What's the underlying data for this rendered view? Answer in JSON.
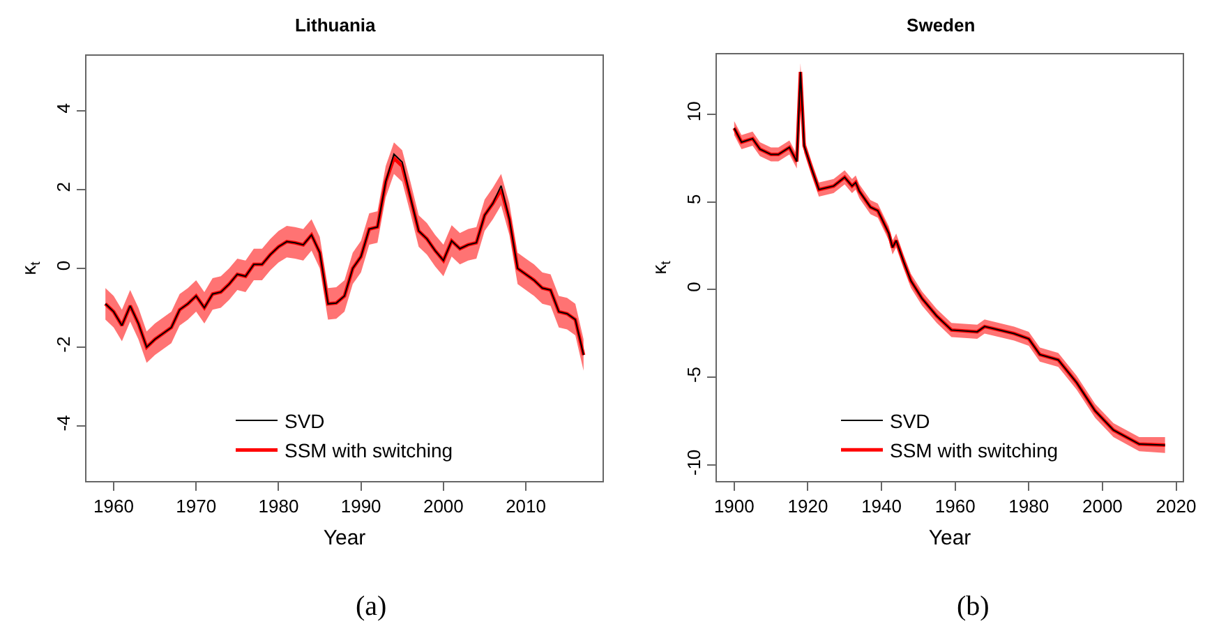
{
  "chart_data": [
    {
      "type": "line",
      "title": "Lithuania",
      "xlabel": "Year",
      "ylabel": "κ$_{t}$",
      "legend": "bottom",
      "grid": false,
      "annotations": [
        "(a)"
      ],
      "xlim": [
        1956.7,
        2019.3
      ],
      "xticks": [
        1960,
        1970,
        1980,
        1990,
        2000,
        2010
      ],
      "ylim": [
        -5.4,
        5.4
      ],
      "yticks": [
        -4,
        -2,
        0,
        2,
        4
      ],
      "x": [
        1959,
        1960,
        1961,
        1962,
        1963,
        1964,
        1965,
        1966,
        1967,
        1968,
        1969,
        1970,
        1971,
        1972,
        1973,
        1974,
        1975,
        1976,
        1977,
        1978,
        1979,
        1980,
        1981,
        1982,
        1983,
        1984,
        1985,
        1986,
        1987,
        1988,
        1989,
        1990,
        1991,
        1992,
        1993,
        1994,
        1995,
        1996,
        1997,
        1998,
        1999,
        2000,
        2001,
        2002,
        2003,
        2004,
        2005,
        2006,
        2007,
        2008,
        2009,
        2010,
        2011,
        2012,
        2013,
        2014,
        2015,
        2016,
        2017
      ],
      "series": [
        {
          "name": "SSM with switching",
          "color": "#ff0000",
          "values": [
            -0.9,
            -1.1,
            -1.45,
            -0.95,
            -1.4,
            -2.0,
            -1.8,
            -1.65,
            -1.5,
            -1.05,
            -0.9,
            -0.7,
            -1.0,
            -0.65,
            -0.6,
            -0.4,
            -0.15,
            -0.2,
            0.1,
            0.1,
            0.35,
            0.55,
            0.68,
            0.65,
            0.6,
            0.85,
            0.4,
            -0.9,
            -0.88,
            -0.7,
            0.0,
            0.3,
            1.0,
            1.05,
            2.2,
            2.8,
            2.6,
            1.8,
            0.95,
            0.75,
            0.45,
            0.2,
            0.7,
            0.5,
            0.6,
            0.65,
            1.35,
            1.65,
            2.0,
            1.25,
            0.0,
            -0.15,
            -0.3,
            -0.5,
            -0.55,
            -1.1,
            -1.15,
            -1.3,
            -2.2
          ],
          "lower": [
            -1.3,
            -1.5,
            -1.85,
            -1.35,
            -1.8,
            -2.4,
            -2.2,
            -2.05,
            -1.9,
            -1.45,
            -1.3,
            -1.1,
            -1.4,
            -1.05,
            -1.0,
            -0.8,
            -0.55,
            -0.6,
            -0.3,
            -0.3,
            -0.05,
            0.15,
            0.28,
            0.25,
            0.2,
            0.45,
            0.0,
            -1.3,
            -1.28,
            -1.1,
            -0.4,
            -0.1,
            0.6,
            0.65,
            1.8,
            2.4,
            2.2,
            1.4,
            0.55,
            0.35,
            0.05,
            -0.2,
            0.3,
            0.1,
            0.2,
            0.25,
            0.95,
            1.25,
            1.6,
            0.85,
            -0.4,
            -0.55,
            -0.7,
            -0.9,
            -0.95,
            -1.5,
            -1.55,
            -1.7,
            -2.6
          ],
          "upper": [
            -0.5,
            -0.7,
            -1.05,
            -0.55,
            -1.0,
            -1.6,
            -1.4,
            -1.25,
            -1.1,
            -0.65,
            -0.5,
            -0.3,
            -0.6,
            -0.25,
            -0.2,
            0.0,
            0.25,
            0.2,
            0.5,
            0.5,
            0.75,
            0.95,
            1.08,
            1.05,
            1.0,
            1.25,
            0.8,
            -0.5,
            -0.48,
            -0.3,
            0.4,
            0.7,
            1.4,
            1.45,
            2.6,
            3.2,
            3.0,
            2.2,
            1.35,
            1.15,
            0.85,
            0.6,
            1.1,
            0.9,
            1.0,
            1.05,
            1.75,
            2.05,
            2.4,
            1.65,
            0.4,
            0.25,
            0.1,
            -0.1,
            -0.15,
            -0.7,
            -0.75,
            -0.9,
            -1.8
          ]
        },
        {
          "name": "SVD",
          "color": "#000000",
          "values": [
            -0.9,
            -1.1,
            -1.45,
            -0.95,
            -1.4,
            -2.0,
            -1.8,
            -1.65,
            -1.5,
            -1.05,
            -0.9,
            -0.7,
            -1.0,
            -0.65,
            -0.6,
            -0.4,
            -0.15,
            -0.2,
            0.1,
            0.1,
            0.35,
            0.55,
            0.68,
            0.65,
            0.6,
            0.85,
            0.4,
            -0.9,
            -0.88,
            -0.7,
            0.0,
            0.3,
            1.0,
            1.05,
            2.2,
            2.9,
            2.7,
            1.8,
            0.95,
            0.75,
            0.45,
            0.2,
            0.7,
            0.5,
            0.6,
            0.65,
            1.35,
            1.65,
            2.1,
            1.25,
            0.0,
            -0.15,
            -0.3,
            -0.5,
            -0.55,
            -1.1,
            -1.15,
            -1.3,
            -2.2
          ]
        }
      ]
    },
    {
      "type": "line",
      "title": "Sweden",
      "xlabel": "Year",
      "ylabel": "κ$_{t}$",
      "legend": "bottom",
      "grid": false,
      "annotations": [
        "(b)"
      ],
      "xlim": [
        1895.3,
        2021.8
      ],
      "xticks": [
        1900,
        1920,
        1940,
        1960,
        1980,
        2000,
        2020
      ],
      "ylim": [
        -10.9,
        13.4
      ],
      "yticks": [
        -10,
        -5,
        0,
        5,
        10
      ],
      "x": [
        1900,
        1902,
        1905,
        1907,
        1910,
        1912,
        1915,
        1916,
        1917,
        1918,
        1919,
        1921,
        1923,
        1927,
        1930,
        1932,
        1933,
        1934,
        1937,
        1939,
        1942,
        1943,
        1944,
        1946,
        1948,
        1951,
        1955,
        1959,
        1966,
        1968,
        1976,
        1980,
        1983,
        1988,
        1993,
        1998,
        2003,
        2010,
        2017
      ],
      "series": [
        {
          "name": "SSM with switching",
          "color": "#ff0000",
          "values": [
            9.2,
            8.4,
            8.6,
            8.0,
            7.7,
            7.7,
            8.1,
            7.7,
            7.3,
            12.4,
            8.2,
            6.9,
            5.7,
            5.9,
            6.4,
            5.9,
            6.1,
            5.6,
            4.7,
            4.5,
            3.2,
            2.4,
            2.8,
            1.6,
            0.5,
            -0.5,
            -1.5,
            -2.3,
            -2.4,
            -2.1,
            -2.5,
            -2.8,
            -3.7,
            -4.0,
            -5.3,
            -6.9,
            -8.0,
            -8.8,
            -8.85
          ],
          "lower": [
            8.8,
            8.0,
            8.2,
            7.6,
            7.3,
            7.3,
            7.7,
            7.3,
            6.9,
            11.6,
            7.8,
            6.5,
            5.3,
            5.5,
            6.0,
            5.5,
            5.7,
            5.2,
            4.3,
            4.1,
            2.8,
            2.0,
            2.4,
            1.2,
            0.1,
            -0.9,
            -1.9,
            -2.7,
            -2.8,
            -2.5,
            -2.9,
            -3.2,
            -4.1,
            -4.4,
            -5.7,
            -7.3,
            -8.4,
            -9.2,
            -9.3
          ],
          "upper": [
            9.6,
            8.8,
            9.0,
            8.4,
            8.1,
            8.1,
            8.5,
            8.1,
            7.7,
            12.9,
            8.6,
            7.3,
            6.1,
            6.3,
            6.8,
            6.3,
            6.5,
            6.0,
            5.1,
            4.9,
            3.6,
            2.8,
            3.2,
            2.0,
            0.9,
            -0.1,
            -1.1,
            -1.9,
            -2.0,
            -1.7,
            -2.1,
            -2.4,
            -3.3,
            -3.6,
            -4.9,
            -6.5,
            -7.6,
            -8.4,
            -8.4
          ]
        },
        {
          "name": "SVD",
          "color": "#000000",
          "values": [
            9.2,
            8.4,
            8.6,
            8.0,
            7.7,
            7.7,
            8.1,
            7.7,
            7.3,
            12.4,
            8.2,
            6.9,
            5.7,
            5.9,
            6.4,
            5.9,
            6.1,
            5.6,
            4.7,
            4.5,
            3.2,
            2.4,
            2.8,
            1.6,
            0.5,
            -0.5,
            -1.5,
            -2.3,
            -2.4,
            -2.1,
            -2.5,
            -2.8,
            -3.7,
            -4.0,
            -5.3,
            -6.9,
            -8.0,
            -8.8,
            -8.85
          ]
        }
      ]
    }
  ]
}
